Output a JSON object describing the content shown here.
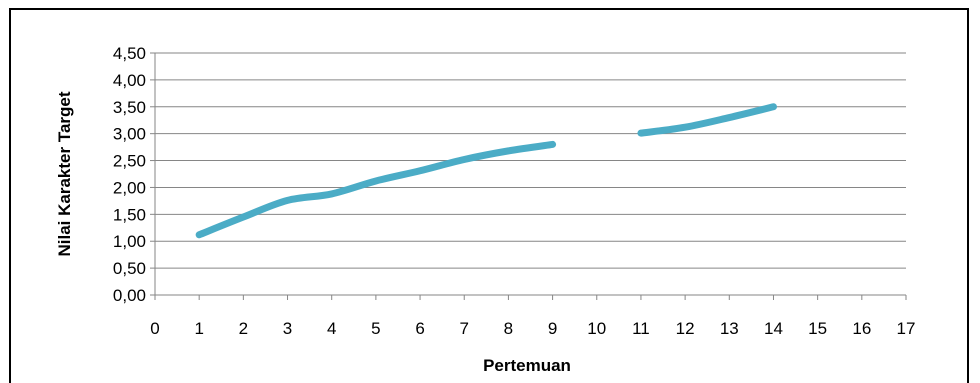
{
  "chart_data": {
    "type": "line",
    "title": "",
    "xlabel": "Pertemuan",
    "ylabel": "Nilai Karakter Target",
    "xlim": [
      0,
      17
    ],
    "ylim": [
      0,
      4.5
    ],
    "x_ticks": [
      "0",
      "1",
      "2",
      "3",
      "4",
      "5",
      "6",
      "7",
      "8",
      "9",
      "10",
      "11",
      "12",
      "13",
      "14",
      "15",
      "16",
      "17"
    ],
    "y_ticks": [
      "0,00",
      "0,50",
      "1,00",
      "1,50",
      "2,00",
      "2,50",
      "3,00",
      "3,50",
      "4,00",
      "4,50"
    ],
    "grid": true,
    "legend": "none",
    "series": [
      {
        "color": "#4BACC6",
        "segments": [
          [
            [
              1,
              1.12
            ],
            [
              2,
              1.45
            ],
            [
              3,
              1.76
            ],
            [
              4,
              1.88
            ],
            [
              5,
              2.12
            ],
            [
              6,
              2.31
            ],
            [
              7,
              2.52
            ],
            [
              8,
              2.68
            ],
            [
              9,
              2.8
            ]
          ],
          [
            [
              11,
              3.01
            ],
            [
              12,
              3.12
            ],
            [
              13,
              3.3
            ],
            [
              14,
              3.5
            ]
          ]
        ]
      }
    ]
  }
}
